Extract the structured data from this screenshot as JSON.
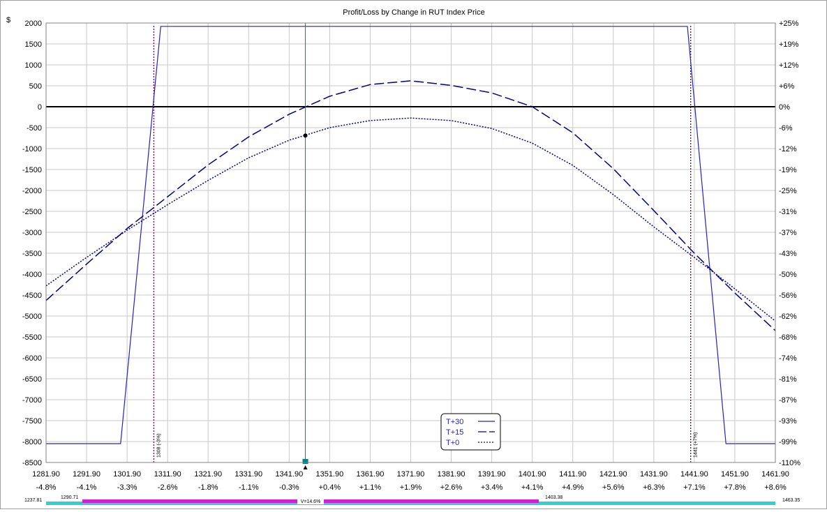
{
  "chart_data": {
    "type": "line",
    "title": "Profit/Loss by Change in RUT Index Price",
    "y_unit": "$",
    "xlim": [
      1281.9,
      1461.9
    ],
    "ylim": [
      -8500,
      2000
    ],
    "right_ylim_pct": [
      -110,
      25
    ],
    "grid": true,
    "x_ticks": [
      1281.9,
      1291.9,
      1301.9,
      1311.9,
      1321.9,
      1331.9,
      1341.9,
      1351.9,
      1361.9,
      1371.9,
      1381.9,
      1391.9,
      1401.9,
      1411.9,
      1421.9,
      1431.9,
      1441.9,
      1451.9,
      1461.9
    ],
    "x_tick_labels": [
      "1281.90",
      "1291.90",
      "1301.90",
      "1311.90",
      "1321.90",
      "1331.90",
      "1341.90",
      "1351.90",
      "1361.90",
      "1371.90",
      "1381.90",
      "1391.90",
      "1401.90",
      "1411.90",
      "1421.90",
      "1431.90",
      "1441.90",
      "1451.90",
      "1461.90"
    ],
    "x_pct_labels": [
      "-4.8%",
      "-4.1%",
      "-3.3%",
      "-2.6%",
      "-1.8%",
      "-1.1%",
      "-0.3%",
      "+0.4%",
      "+1.1%",
      "+1.9%",
      "+2.6%",
      "+3.4%",
      "+4.1%",
      "+4.9%",
      "+5.6%",
      "+6.3%",
      "+7.1%",
      "+7.8%",
      "+8.6%"
    ],
    "y_ticks": [
      2000,
      1500,
      1000,
      500,
      0,
      -500,
      -1000,
      -1500,
      -2000,
      -2500,
      -3000,
      -3500,
      -4000,
      -4500,
      -5000,
      -5500,
      -6000,
      -6500,
      -7000,
      -7500,
      -8000,
      -8500
    ],
    "y_tick_labels": [
      "2000",
      "1500",
      "1000",
      "500",
      "0",
      "-500",
      "-1000",
      "-1500",
      "-2000",
      "-2500",
      "-3000",
      "-3500",
      "-4000",
      "-4500",
      "-5000",
      "-5500",
      "-6000",
      "-6500",
      "-7000",
      "-7500",
      "-8000",
      "-8500"
    ],
    "right_tick_labels": [
      "+25%",
      "+19%",
      "+12%",
      "+6%",
      "0%",
      "-6%",
      "-12%",
      "-19%",
      "-25%",
      "-31%",
      "-37%",
      "-43%",
      "-50%",
      "-56%",
      "-62%",
      "-68%",
      "-74%",
      "-81%",
      "-87%",
      "-93%",
      "-99%",
      "-110%"
    ],
    "series": [
      {
        "name": "T+30",
        "style": "solid",
        "color": "#2222c8",
        "x": [
          1281.9,
          1300.3,
          1310.2,
          1440.2,
          1449.7,
          1461.9
        ],
        "y": [
          -8050,
          -8050,
          1920,
          1920,
          -8050,
          -8050
        ]
      },
      {
        "name": "T+15",
        "style": "dash",
        "color": "#000080",
        "x": [
          1281.9,
          1291.9,
          1301.9,
          1311.9,
          1321.9,
          1331.9,
          1341.9,
          1351.9,
          1361.9,
          1371.9,
          1381.9,
          1391.9,
          1401.9,
          1411.9,
          1421.9,
          1431.9,
          1441.9,
          1451.9,
          1461.9
        ],
        "y": [
          -4630,
          -3760,
          -2910,
          -2150,
          -1390,
          -720,
          -180,
          250,
          530,
          620,
          510,
          330,
          0,
          -620,
          -1480,
          -2480,
          -3500,
          -4450,
          -5350
        ]
      },
      {
        "name": "T+0",
        "style": "dot",
        "color": "#000080",
        "x": [
          1281.9,
          1291.9,
          1301.9,
          1311.9,
          1321.9,
          1331.9,
          1341.9,
          1351.9,
          1361.9,
          1371.9,
          1381.9,
          1391.9,
          1401.9,
          1411.9,
          1421.9,
          1431.9,
          1441.9,
          1451.9,
          1461.9
        ],
        "y": [
          -4280,
          -3600,
          -2950,
          -2340,
          -1760,
          -1220,
          -800,
          -500,
          -330,
          -270,
          -330,
          -520,
          -870,
          -1400,
          -2100,
          -2870,
          -3600,
          -4350,
          -5120
        ]
      }
    ],
    "current_price": {
      "x": 1345.9,
      "y_t0": -690
    },
    "vertical_markers": [
      {
        "x": 1308.5,
        "label": "1308 (-3%)"
      },
      {
        "x": 1441.0,
        "label": "1441 (+7%)"
      }
    ],
    "legend": {
      "placement": "bottom-center",
      "items": [
        {
          "label": "T+30",
          "style": "solid"
        },
        {
          "label": "T+15",
          "style": "dash"
        },
        {
          "label": "T+0",
          "style": "dot"
        }
      ]
    },
    "range_bar": {
      "outer_low": "1237.81",
      "inner_low": "1290.71",
      "center_label": "V=14.6%",
      "inner_high": "1403.38",
      "outer_high": "1463.35"
    }
  },
  "colors": {
    "t30": "#2222c8",
    "curves": "#000080",
    "marker": "#800040",
    "price_line": "#008080",
    "range_inner": "#d020d0",
    "range_outer": "#30d0d0"
  }
}
